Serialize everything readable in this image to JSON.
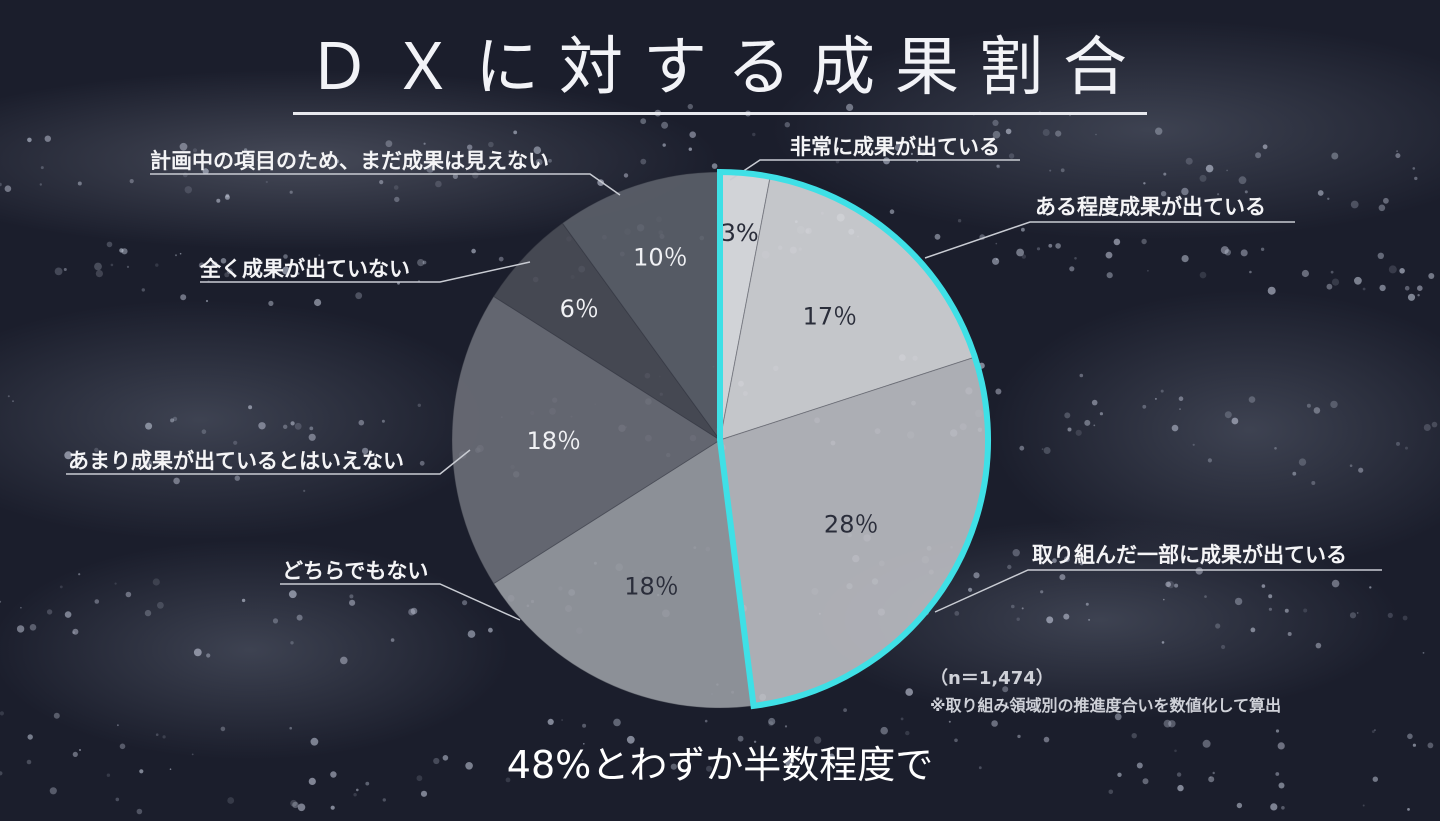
{
  "title": "ＤＸに対する成果割合",
  "caption": "48%とわずか半数程度で",
  "note": {
    "n": "（n＝1,474）",
    "method": "※取り組み領域別の推進度合いを数値化して算出"
  },
  "colors": {
    "highlight_ring": "#3fe0e6",
    "background": "#1a1d2b"
  },
  "chart_data": {
    "type": "pie",
    "title": "ＤＸに対する成果割合",
    "start": "12 o'clock, clockwise",
    "highlight_group": "first three slices (48%)",
    "slices": [
      {
        "label": "非常に成果が出ている",
        "value": 3,
        "value_label": "3%",
        "color": "#e6e7ea"
      },
      {
        "label": "ある程度成果が出ている",
        "value": 17,
        "value_label": "17％",
        "color": "#d7d8dc"
      },
      {
        "label": "取り組んだ一部に成果が出ている",
        "value": 28,
        "value_label": "28％",
        "color": "#bcbec3"
      },
      {
        "label": "どちらでもない",
        "value": 18,
        "value_label": "18％",
        "color": "#999ca3"
      },
      {
        "label": "あまり成果が出ているとはいえない",
        "value": 18,
        "value_label": "18％",
        "color": "#6b6e78"
      },
      {
        "label": "全く成果が出ていない",
        "value": 6,
        "value_label": "6％",
        "color": "#4a4d57"
      },
      {
        "label": "計画中の項目のため、まだ成果は見えない",
        "value": 10,
        "value_label": "10％",
        "color": "#5c606a"
      }
    ]
  }
}
